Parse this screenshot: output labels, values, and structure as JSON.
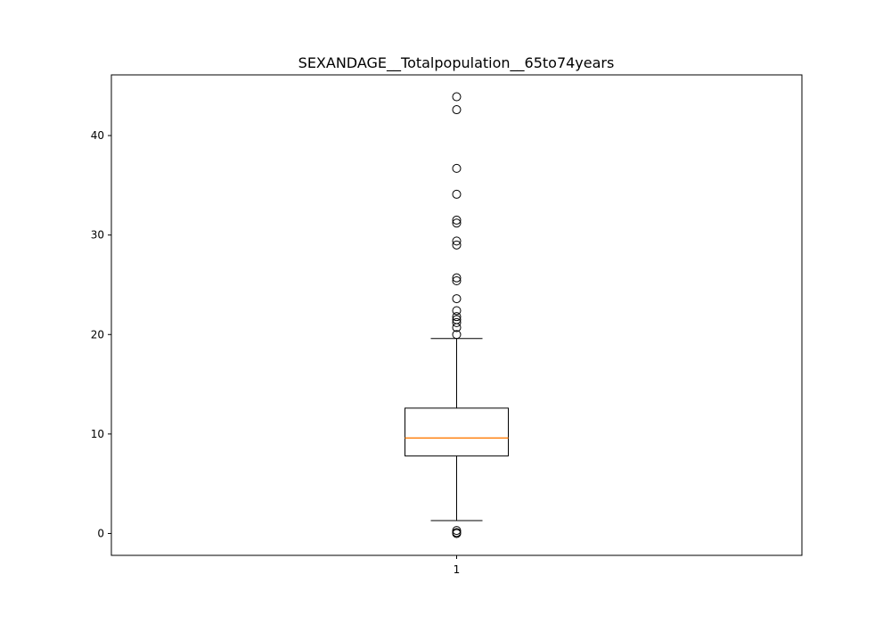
{
  "chart_data": {
    "type": "boxplot",
    "title": "SEXANDAGE__Totalpopulation__65to74years",
    "xlabel": "",
    "ylabel": "",
    "categories": [
      "1"
    ],
    "ylim": [
      -2.2,
      46.1
    ],
    "yticks": [
      0,
      10,
      20,
      30,
      40
    ],
    "grid": false,
    "box": {
      "whisker_low": 1.3,
      "q1": 7.8,
      "median": 9.6,
      "q3": 12.6,
      "whisker_high": 19.6
    },
    "outliers": [
      0.0,
      0.1,
      0.3,
      20.0,
      20.7,
      21.2,
      21.5,
      21.8,
      22.4,
      23.6,
      25.4,
      25.7,
      29.0,
      29.4,
      31.2,
      31.5,
      34.1,
      36.7,
      42.6,
      43.9
    ],
    "colors": {
      "box": "#000000",
      "median": "#ff7f0e",
      "whisker": "#000000",
      "outlier": "#000000"
    }
  }
}
